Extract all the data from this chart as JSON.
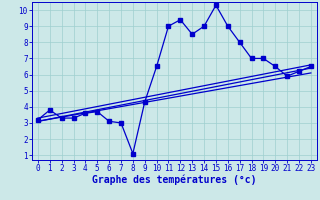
{
  "xlabel": "Graphe des températures (°c)",
  "background_color": "#cce8e8",
  "grid_color": "#9fcfcf",
  "line_color": "#0000cc",
  "xlim": [
    -0.5,
    23.5
  ],
  "ylim": [
    0.7,
    10.5
  ],
  "xticks": [
    0,
    1,
    2,
    3,
    4,
    5,
    6,
    7,
    8,
    9,
    10,
    11,
    12,
    13,
    14,
    15,
    16,
    17,
    18,
    19,
    20,
    21,
    22,
    23
  ],
  "yticks": [
    1,
    2,
    3,
    4,
    5,
    6,
    7,
    8,
    9,
    10
  ],
  "main_x": [
    0,
    1,
    2,
    3,
    4,
    5,
    6,
    7,
    8,
    9,
    10,
    11,
    12,
    13,
    14,
    15,
    16,
    17,
    18,
    19,
    20,
    21,
    22,
    23
  ],
  "main_y": [
    3.2,
    3.8,
    3.3,
    3.3,
    3.6,
    3.7,
    3.1,
    3.0,
    1.1,
    4.3,
    6.5,
    9.0,
    9.4,
    8.5,
    9.0,
    10.3,
    9.0,
    8.0,
    7.0,
    7.0,
    6.5,
    5.9,
    6.2,
    6.5
  ],
  "line1_x": [
    0,
    23
  ],
  "line1_y": [
    3.1,
    6.1
  ],
  "line2_x": [
    0,
    23
  ],
  "line2_y": [
    3.1,
    6.4
  ],
  "line3_x": [
    0,
    23
  ],
  "line3_y": [
    3.3,
    6.6
  ],
  "tick_fontsize": 5.5,
  "xlabel_fontsize": 7
}
